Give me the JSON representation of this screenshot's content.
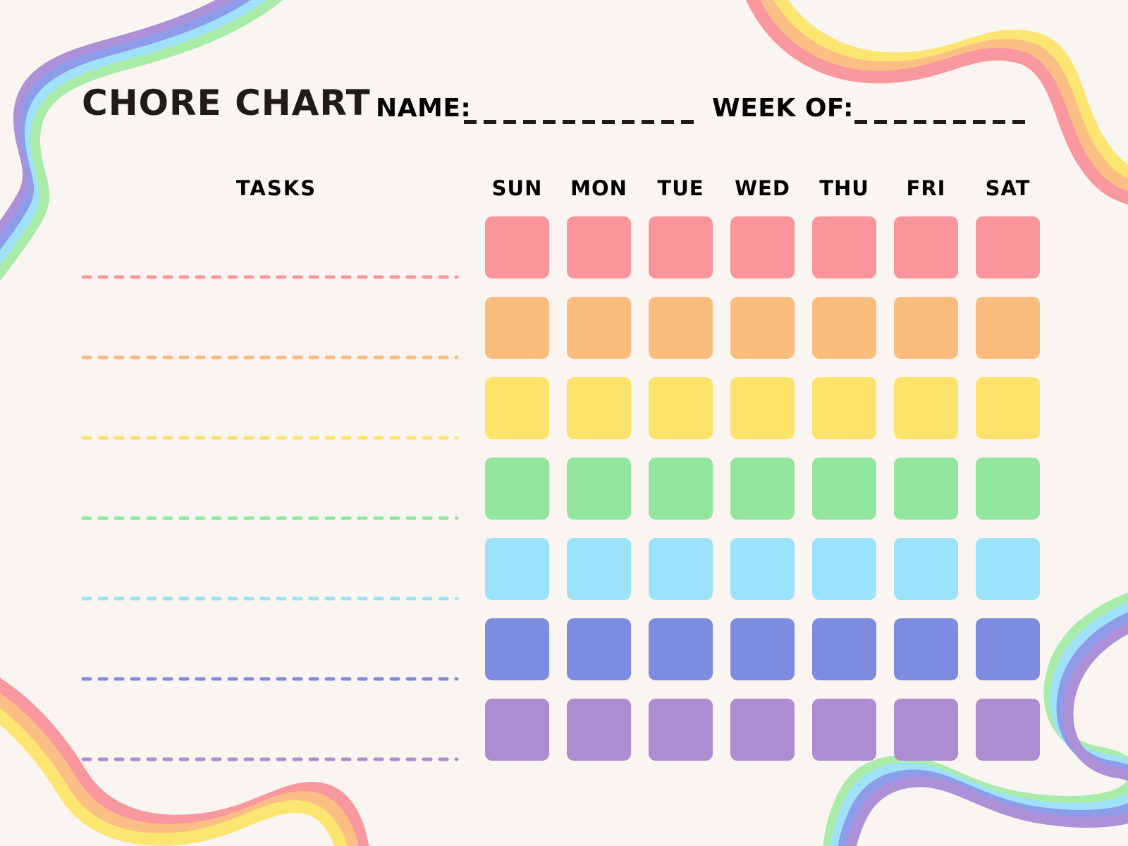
{
  "page": {
    "background": "#FBF5F2",
    "text_color": "#201B17"
  },
  "header": {
    "title": "CHORE CHART",
    "name_label": "NAME:",
    "name_value": "",
    "week_of_label": "WEEK OF:",
    "week_of_value": ""
  },
  "table": {
    "tasks_label": "TASKS",
    "days": [
      "SUN",
      "MON",
      "TUE",
      "WED",
      "THU",
      "FRI",
      "SAT"
    ],
    "rows": [
      {
        "task": "",
        "color": "#F9959B"
      },
      {
        "task": "",
        "color": "#FBBD7E"
      },
      {
        "task": "",
        "color": "#FDE36B"
      },
      {
        "task": "",
        "color": "#93E69D"
      },
      {
        "task": "",
        "color": "#9AE3FA"
      },
      {
        "task": "",
        "color": "#7E8CDF"
      },
      {
        "task": "",
        "color": "#AE8CD2"
      }
    ]
  },
  "decorations": {
    "blank_line_color": "#1F1B18",
    "ribbons": {
      "purple": "#AC90D8",
      "periwinkle": "#8C9CE8",
      "sky": "#9FE1FB",
      "green": "#A9ECA9",
      "salmon": "#F9989E",
      "orange": "#FBBF85",
      "yellow": "#FCE571"
    }
  }
}
